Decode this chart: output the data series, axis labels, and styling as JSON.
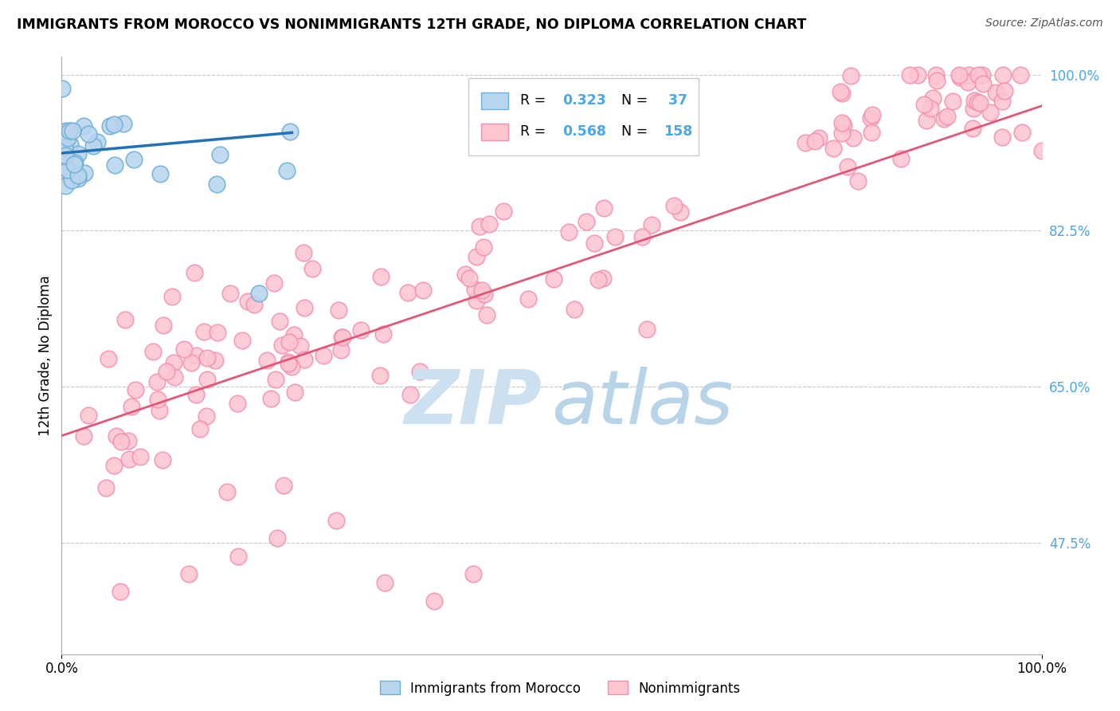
{
  "title": "IMMIGRANTS FROM MOROCCO VS NONIMMIGRANTS 12TH GRADE, NO DIPLOMA CORRELATION CHART",
  "source": "Source: ZipAtlas.com",
  "ylabel": "12th Grade, No Diploma",
  "xlim": [
    0.0,
    1.0
  ],
  "ylim": [
    0.35,
    1.02
  ],
  "ytick_positions_right": [
    0.475,
    0.65,
    0.825,
    1.0
  ],
  "ytick_labels_right": [
    "47.5%",
    "65.0%",
    "82.5%",
    "100.0%"
  ],
  "color_blue_fill": "#b8d4ee",
  "color_blue_edge": "#6baed6",
  "color_blue_line": "#2171b5",
  "color_pink_fill": "#fcc5d0",
  "color_pink_edge": "#f48fb1",
  "color_pink_line": "#e05878",
  "color_cyan_text": "#4da6e8",
  "grid_color": "#c8c8c8",
  "background_color": "#ffffff",
  "watermark_zip_color": "#cce0f0",
  "watermark_atlas_color": "#b8d4e8",
  "legend_box_color": "#f0f0f0",
  "legend_box_edge": "#cccccc"
}
